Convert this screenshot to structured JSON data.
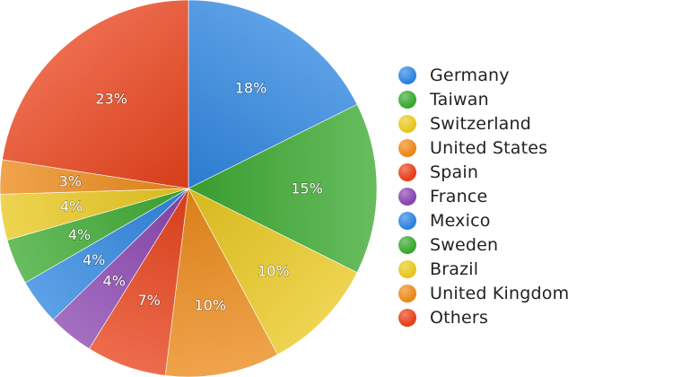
{
  "chart_data": {
    "type": "pie",
    "categories": [
      "Germany",
      "Taiwan",
      "Switzerland",
      "United States",
      "Spain",
      "France",
      "Mexico",
      "Sweden",
      "Brazil",
      "United Kingdom",
      "Others"
    ],
    "values": [
      18,
      15,
      10,
      10,
      7,
      4,
      4,
      4,
      4,
      3,
      23
    ],
    "labels": [
      "18%",
      "15%",
      "10%",
      "10%",
      "7%",
      "4%",
      "4%",
      "4%",
      "4%",
      "3%",
      "23%"
    ],
    "colors": [
      "#2f86e0",
      "#3daa32",
      "#e9c820",
      "#ec8a1a",
      "#e8421b",
      "#8a46b0",
      "#2f86e0",
      "#3daa32",
      "#e9c820",
      "#ec8a1a",
      "#e8421b"
    ],
    "legend_position": "right",
    "start_angle_deg": 0,
    "direction": "clockwise"
  }
}
